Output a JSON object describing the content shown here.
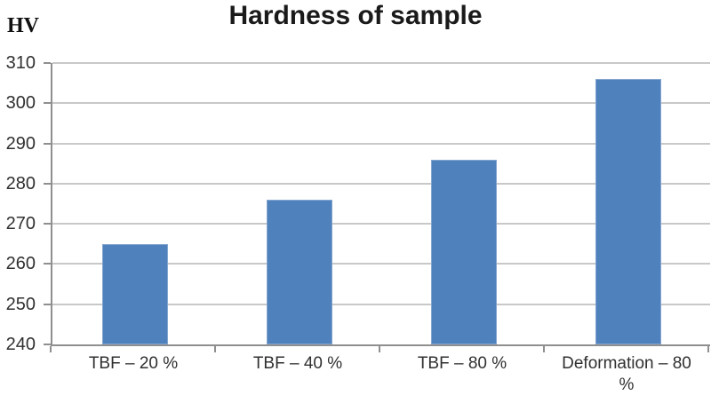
{
  "chart_data": {
    "type": "bar",
    "title": "Hardness of sample",
    "ylabel": "HV",
    "xlabel": "",
    "categories": [
      "TBF – 20 %",
      "TBF – 40 %",
      "TBF – 80 %",
      "Deformation – 80 %"
    ],
    "values": [
      265,
      276,
      286,
      306
    ],
    "ylim": [
      240,
      310
    ],
    "yticks": [
      240,
      250,
      260,
      270,
      280,
      290,
      300,
      310
    ],
    "grid": "horizontal",
    "legend_position": "none",
    "bar_color": "#4F81BD",
    "bar_border_color": "#83A5CF",
    "gridline_color": "#C8C8C8",
    "axis_color": "#8F8F8F",
    "tick_label_color": "#303030",
    "title_color": "#1A1A1A"
  }
}
